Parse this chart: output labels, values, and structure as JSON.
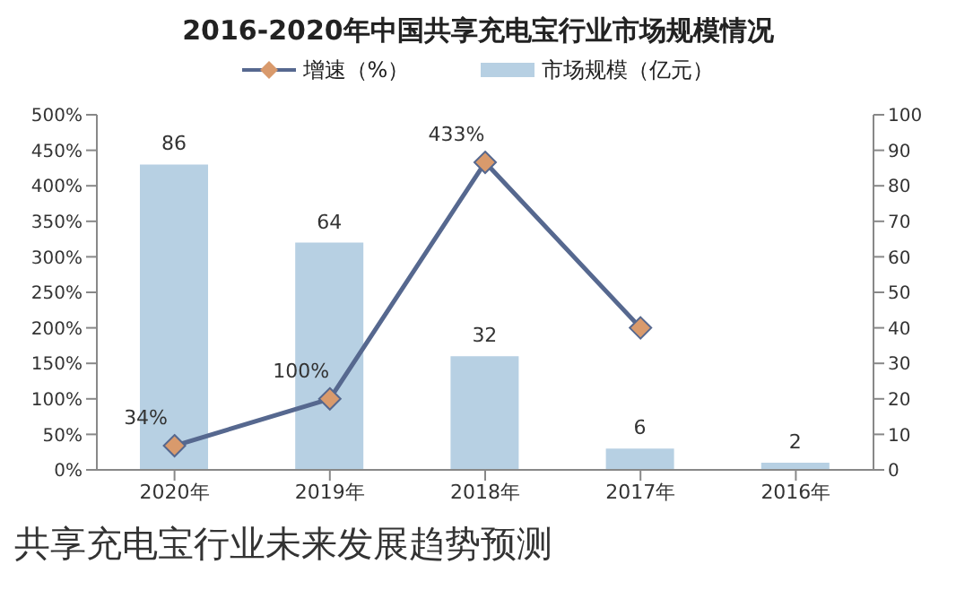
{
  "chart_data": {
    "type": "bar",
    "title": "2016-2020年中国共享充电宝行业市场规模情况",
    "categories": [
      "2020年",
      "2019年",
      "2018年",
      "2017年",
      "2016年"
    ],
    "series": [
      {
        "name": "增速（%）",
        "type": "line",
        "axis": "y",
        "color": "#56688f",
        "marker": "diamond",
        "values": [
          34,
          100,
          433,
          200,
          null
        ],
        "value_labels": [
          "34%",
          "100%",
          "433%",
          null,
          null
        ]
      },
      {
        "name": "市场规模（亿元）",
        "axis": "y2",
        "color": "#b7d0e3",
        "values": [
          86,
          64,
          32,
          6,
          2
        ],
        "value_labels": [
          "86",
          "64",
          "32",
          "6",
          "2"
        ]
      }
    ],
    "ylim": [
      0,
      500
    ],
    "yticks": [
      {
        "value": 0,
        "label": "0%"
      },
      {
        "value": 50,
        "label": "50%"
      },
      {
        "value": 100,
        "label": "100%"
      },
      {
        "value": 150,
        "label": "150%"
      },
      {
        "value": 200,
        "label": "200%"
      },
      {
        "value": 250,
        "label": "250%"
      },
      {
        "value": 300,
        "label": "300%"
      },
      {
        "value": 350,
        "label": "350%"
      },
      {
        "value": 400,
        "label": "400%"
      },
      {
        "value": 450,
        "label": "450%"
      },
      {
        "value": 500,
        "label": "500%"
      }
    ],
    "y2lim": [
      0,
      100
    ],
    "y2ticks": [
      0,
      10,
      20,
      30,
      40,
      50,
      60,
      70,
      80,
      90,
      100
    ],
    "legend": "top",
    "grid": false,
    "annotations": [
      "共享充电宝行业未来发展趋势预测"
    ]
  }
}
